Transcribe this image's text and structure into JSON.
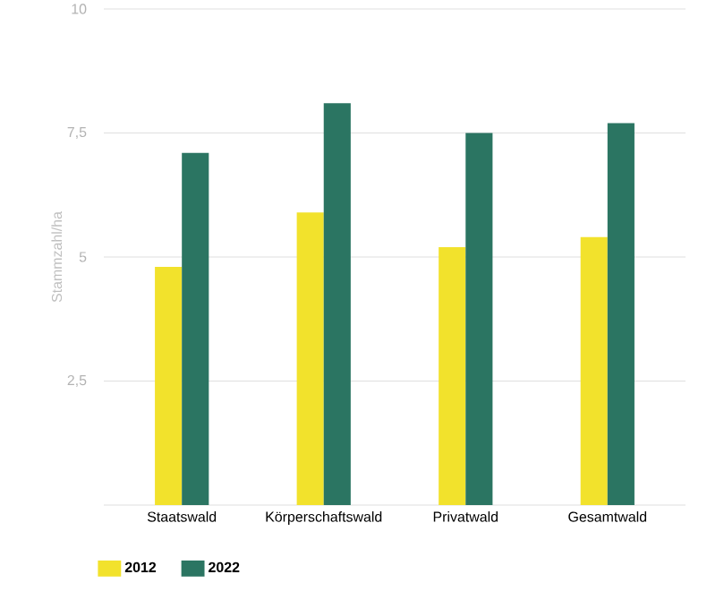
{
  "chart_data": {
    "type": "bar",
    "ylabel": "Stammzahl/ha",
    "categories": [
      "Staatswald",
      "Körperschaftswald",
      "Privatwald",
      "Gesamtwald"
    ],
    "series": [
      {
        "name": "2012",
        "color": "#f2e22c",
        "values": [
          4.8,
          5.9,
          5.2,
          5.4
        ]
      },
      {
        "name": "2022",
        "color": "#2b7562",
        "values": [
          7.1,
          8.1,
          7.5,
          7.7
        ]
      }
    ],
    "ylim": [
      0,
      10
    ],
    "yticks": [
      {
        "value": 0,
        "label": null
      },
      {
        "value": 2.5,
        "label": "2,5"
      },
      {
        "value": 5,
        "label": "5"
      },
      {
        "value": 7.5,
        "label": "7,5"
      },
      {
        "value": 10,
        "label": "10"
      }
    ],
    "grid": "y",
    "legend": "bottom left"
  }
}
